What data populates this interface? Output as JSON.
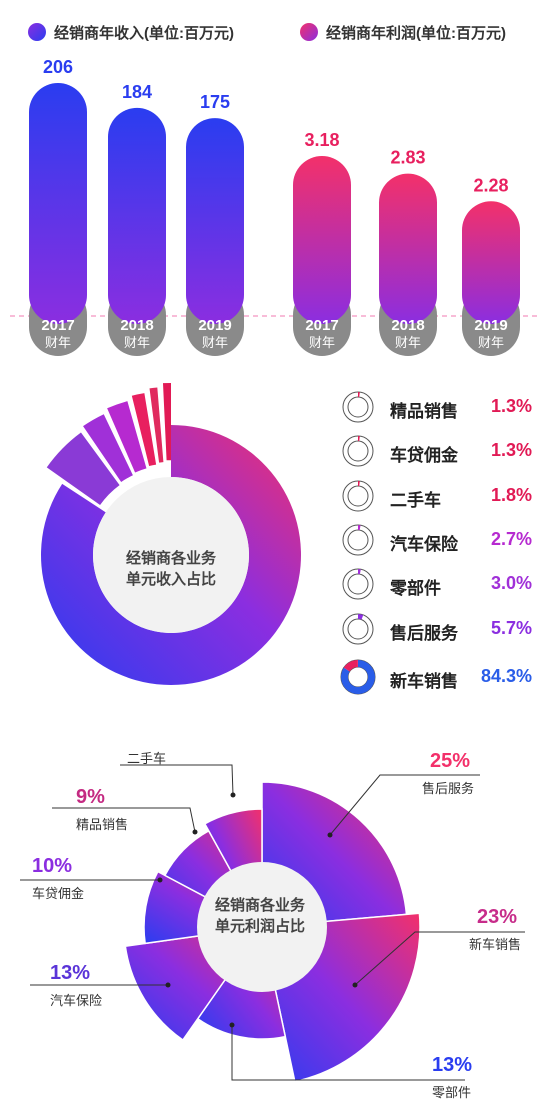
{
  "headers": {
    "revenue_title": "经销商年收入(单位:百万元)",
    "profit_title": "经销商年利润(单位:百万元)"
  },
  "colors": {
    "blue": "#2a3df0",
    "purple": "#8b2ee0",
    "pink": "#f3306a",
    "grey": "#8a8a8a",
    "dashed": "#f07ab0"
  },
  "chart_data": [
    {
      "type": "bar",
      "title": "经销商年收入(单位:百万元)",
      "categories": [
        "2017",
        "2018",
        "2019"
      ],
      "category_suffix": "财年",
      "values": [
        206,
        184,
        175
      ],
      "value_labels": [
        "206",
        "184",
        "175"
      ]
    },
    {
      "type": "bar",
      "title": "经销商年利润(单位:百万元)",
      "categories": [
        "2017",
        "2018",
        "2019"
      ],
      "category_suffix": "财年",
      "values": [
        3.18,
        2.83,
        2.28
      ],
      "value_labels": [
        "3.18",
        "2.83",
        "2.28"
      ]
    },
    {
      "type": "pie",
      "title": "经销商各业务单元收入占比",
      "center_label": [
        "经销商各业务",
        "单元收入占比"
      ],
      "slices": [
        {
          "name": "精品销售",
          "value": 1.3,
          "label": "1.3%",
          "color": "#e11a55"
        },
        {
          "name": "车贷佣金",
          "value": 1.3,
          "label": "1.3%",
          "color": "#e02a5e"
        },
        {
          "name": "二手车",
          "value": 1.8,
          "label": "1.8%",
          "color": "#e8205f"
        },
        {
          "name": "汽车保险",
          "value": 2.7,
          "label": "2.7%",
          "color": "#b62ad0"
        },
        {
          "name": "零部件",
          "value": 3.0,
          "label": "3.0%",
          "color": "#a030d8"
        },
        {
          "name": "售后服务",
          "value": 5.7,
          "label": "5.7%",
          "color": "#8a3ad6"
        },
        {
          "name": "新车销售",
          "value": 84.3,
          "label": "84.3%",
          "color": "#2a5de8"
        }
      ]
    },
    {
      "type": "pie",
      "title": "经销商各业务单元利润占比",
      "center_label": [
        "经销商各业务",
        "单元利润占比"
      ],
      "slices": [
        {
          "name": "售后服务",
          "value": 25,
          "label": "25%"
        },
        {
          "name": "新车销售",
          "value": 23,
          "label": "23%"
        },
        {
          "name": "零部件",
          "value": 13,
          "label": "13%"
        },
        {
          "name": "汽车保险",
          "value": 13,
          "label": "13%"
        },
        {
          "name": "车贷佣金",
          "value": 10,
          "label": "10%"
        },
        {
          "name": "精品销售",
          "value": 9,
          "label": "9%"
        },
        {
          "name": "二手车",
          "value": "",
          "label": ""
        }
      ]
    }
  ]
}
